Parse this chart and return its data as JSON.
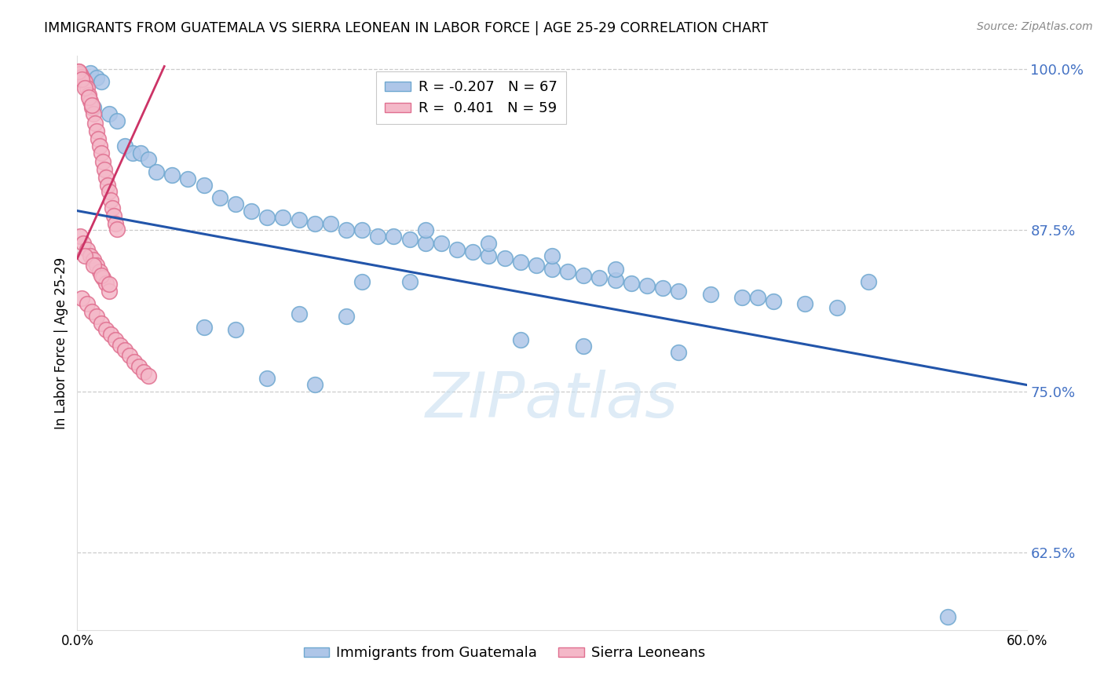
{
  "title": "IMMIGRANTS FROM GUATEMALA VS SIERRA LEONEAN IN LABOR FORCE | AGE 25-29 CORRELATION CHART",
  "source": "Source: ZipAtlas.com",
  "ylabel": "In Labor Force | Age 25-29",
  "xlim": [
    0.0,
    0.6
  ],
  "ylim": [
    0.565,
    1.01
  ],
  "yticks": [
    0.625,
    0.75,
    0.875,
    1.0
  ],
  "ytick_labels": [
    "62.5%",
    "75.0%",
    "87.5%",
    "100.0%"
  ],
  "blue_color": "#aec6e8",
  "blue_edge": "#6fa8d0",
  "pink_color": "#f4b8c8",
  "pink_edge": "#e07090",
  "trend_blue": "#2255aa",
  "trend_pink": "#cc3366",
  "R_blue": -0.207,
  "N_blue": 67,
  "R_pink": 0.401,
  "N_pink": 59,
  "watermark": "ZIPatlas",
  "watermark_color": "#c8dff0",
  "blue_trend_x": [
    0.0,
    0.6
  ],
  "blue_trend_y": [
    0.89,
    0.755
  ],
  "pink_trend_x": [
    0.0,
    0.055
  ],
  "pink_trend_y": [
    0.853,
    1.002
  ],
  "blue_scatter_x": [
    0.55,
    0.008,
    0.012,
    0.015,
    0.01,
    0.02,
    0.025,
    0.03,
    0.035,
    0.04,
    0.045,
    0.05,
    0.06,
    0.07,
    0.08,
    0.09,
    0.1,
    0.11,
    0.12,
    0.13,
    0.14,
    0.15,
    0.16,
    0.17,
    0.18,
    0.19,
    0.2,
    0.21,
    0.22,
    0.23,
    0.24,
    0.25,
    0.26,
    0.27,
    0.28,
    0.29,
    0.3,
    0.31,
    0.32,
    0.33,
    0.34,
    0.35,
    0.36,
    0.37,
    0.38,
    0.4,
    0.42,
    0.44,
    0.46,
    0.48,
    0.22,
    0.26,
    0.3,
    0.34,
    0.18,
    0.21,
    0.14,
    0.17,
    0.08,
    0.1,
    0.12,
    0.15,
    0.28,
    0.32,
    0.38,
    0.43,
    0.5
  ],
  "blue_scatter_y": [
    0.575,
    0.997,
    0.993,
    0.99,
    0.97,
    0.965,
    0.96,
    0.94,
    0.935,
    0.935,
    0.93,
    0.92,
    0.918,
    0.915,
    0.91,
    0.9,
    0.895,
    0.89,
    0.885,
    0.885,
    0.883,
    0.88,
    0.88,
    0.875,
    0.875,
    0.87,
    0.87,
    0.868,
    0.865,
    0.865,
    0.86,
    0.858,
    0.855,
    0.853,
    0.85,
    0.848,
    0.845,
    0.843,
    0.84,
    0.838,
    0.836,
    0.834,
    0.832,
    0.83,
    0.828,
    0.825,
    0.823,
    0.82,
    0.818,
    0.815,
    0.875,
    0.865,
    0.855,
    0.845,
    0.835,
    0.835,
    0.81,
    0.808,
    0.8,
    0.798,
    0.76,
    0.755,
    0.79,
    0.785,
    0.78,
    0.823,
    0.835
  ],
  "pink_scatter_x": [
    0.001,
    0.002,
    0.003,
    0.004,
    0.005,
    0.006,
    0.007,
    0.008,
    0.009,
    0.01,
    0.011,
    0.012,
    0.013,
    0.014,
    0.015,
    0.016,
    0.017,
    0.018,
    0.019,
    0.02,
    0.021,
    0.022,
    0.023,
    0.024,
    0.025,
    0.002,
    0.004,
    0.006,
    0.008,
    0.01,
    0.012,
    0.014,
    0.016,
    0.018,
    0.02,
    0.003,
    0.006,
    0.009,
    0.012,
    0.015,
    0.018,
    0.021,
    0.024,
    0.027,
    0.03,
    0.033,
    0.036,
    0.039,
    0.042,
    0.045,
    0.005,
    0.01,
    0.015,
    0.02,
    0.001,
    0.003,
    0.005,
    0.007,
    0.009
  ],
  "pink_scatter_y": [
    0.998,
    0.996,
    0.994,
    0.992,
    0.99,
    0.985,
    0.98,
    0.975,
    0.97,
    0.965,
    0.958,
    0.952,
    0.946,
    0.94,
    0.935,
    0.928,
    0.922,
    0.916,
    0.91,
    0.905,
    0.898,
    0.892,
    0.886,
    0.88,
    0.876,
    0.87,
    0.865,
    0.86,
    0.855,
    0.852,
    0.848,
    0.843,
    0.838,
    0.834,
    0.828,
    0.822,
    0.818,
    0.812,
    0.808,
    0.803,
    0.798,
    0.794,
    0.79,
    0.786,
    0.782,
    0.778,
    0.773,
    0.769,
    0.765,
    0.762,
    0.855,
    0.848,
    0.84,
    0.833,
    0.998,
    0.992,
    0.985,
    0.978,
    0.972
  ]
}
